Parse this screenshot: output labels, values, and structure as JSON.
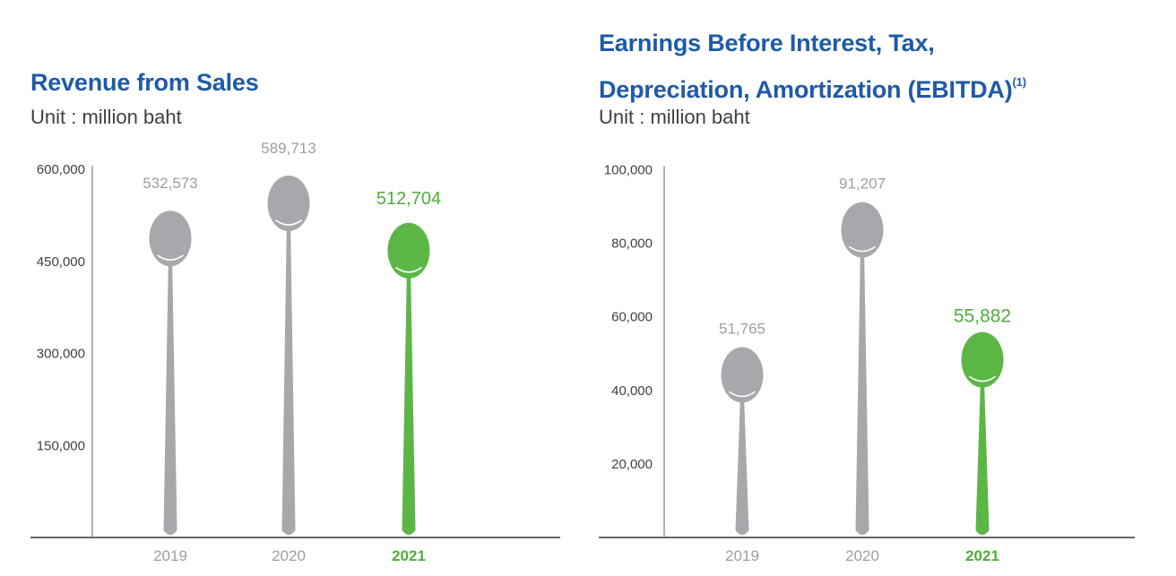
{
  "chart_data": [
    {
      "type": "bar",
      "title": "Revenue from Sales",
      "title_footnote": "",
      "subtitle": "Unit : million baht",
      "categories": [
        "2019",
        "2020",
        "2021"
      ],
      "values": [
        532573,
        589713,
        512704
      ],
      "data_labels": [
        "532,573",
        "589,713",
        "512,704"
      ],
      "highlight_index": 2,
      "yticks": [
        150000,
        300000,
        450000,
        600000
      ],
      "ytick_labels": [
        "150,000",
        "300,000",
        "450,000",
        "600,000"
      ],
      "ylim": [
        0,
        600000
      ],
      "xlabel": "",
      "ylabel": "",
      "grid": false
    },
    {
      "type": "bar",
      "title": "Earnings Before Interest, Tax, Depreciation, Amortization (EBITDA)",
      "title_footnote": "(1)",
      "subtitle": "Unit : million baht",
      "categories": [
        "2019",
        "2020",
        "2021"
      ],
      "values": [
        51765,
        91207,
        55882
      ],
      "data_labels": [
        "51,765",
        "91,207",
        "55,882"
      ],
      "highlight_index": 2,
      "yticks": [
        20000,
        40000,
        60000,
        80000,
        100000
      ],
      "ytick_labels": [
        "20,000",
        "40,000",
        "60,000",
        "80,000",
        "100,000"
      ],
      "ylim": [
        0,
        100000
      ],
      "xlabel": "",
      "ylabel": "",
      "grid": false
    }
  ],
  "colors": {
    "title": "#1f5aa8",
    "subtitle": "#404040",
    "spoon_default": "#a7a8ab",
    "spoon_highlight": "#5cb646",
    "label_default": "#9d9ea0",
    "label_highlight": "#4fae3a",
    "axis": "#666666"
  }
}
